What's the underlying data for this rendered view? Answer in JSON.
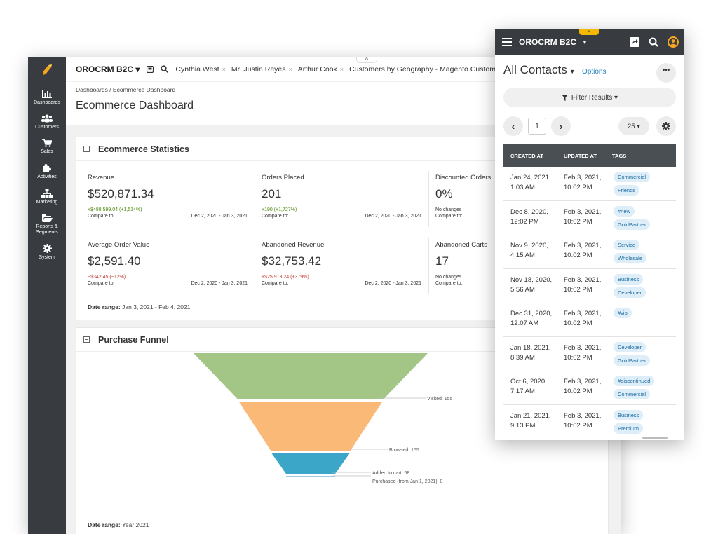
{
  "desktop": {
    "topbar": {
      "brand": "OROCRM B2C",
      "pinned": [
        {
          "label": "Cynthia West"
        },
        {
          "label": "Mr. Justin Reyes"
        },
        {
          "label": "Arthur Cook"
        },
        {
          "label": "Customers by Geography - Magento Customers"
        }
      ]
    },
    "sidebar": {
      "items": [
        {
          "label": "Dashboards",
          "icon": "bar-chart-icon"
        },
        {
          "label": "Customers",
          "icon": "users-icon"
        },
        {
          "label": "Sales",
          "icon": "cart-icon"
        },
        {
          "label": "Activities",
          "icon": "puzzle-icon"
        },
        {
          "label": "Marketing",
          "icon": "sitemap-icon"
        },
        {
          "label": "Reports & Segments",
          "icon": "folder-icon"
        },
        {
          "label": "System",
          "icon": "gear-icon"
        }
      ]
    },
    "breadcrumb": "Dashboards / Ecommerce Dashboard",
    "page_title": "Ecommerce Dashboard",
    "stats_widget": {
      "title": "Ecommerce Statistics",
      "stats": [
        {
          "label": "Revenue",
          "value": "$520,871.34",
          "change": "+$488,599.04 (+1,514%)",
          "trend": "positive",
          "compare_label": "Compare to:",
          "compare_range": "Dec 2, 2020 - Jan 3, 2021"
        },
        {
          "label": "Orders Placed",
          "value": "201",
          "change": "+190 (+1,727%)",
          "trend": "positive",
          "compare_label": "Compare to:",
          "compare_range": "Dec 2, 2020 - Jan 3, 2021"
        },
        {
          "label": "Discounted Orders",
          "value": "0%",
          "change": "No changes",
          "trend": "neutral",
          "compare_label": "Compare to:",
          "compare_range": ""
        },
        {
          "label": "Average Order Value",
          "value": "$2,591.40",
          "change": "−$342.45 (−12%)",
          "trend": "negative",
          "compare_label": "Compare to:",
          "compare_range": "Dec 2, 2020 - Jan 3, 2021"
        },
        {
          "label": "Abandoned Revenue",
          "value": "$32,753.42",
          "change": "+$25,913.24 (+379%)",
          "trend": "negative",
          "compare_label": "Compare to:",
          "compare_range": "Dec 2, 2020 - Jan 3, 2021"
        },
        {
          "label": "Abandoned Carts",
          "value": "17",
          "change": "No changes",
          "trend": "neutral",
          "compare_label": "Compare to:",
          "compare_range": ""
        }
      ],
      "date_range_label": "Date range:",
      "date_range_value": "Jan 3, 2021 - Feb 4, 2021"
    },
    "funnel_widget": {
      "title": "Purchase Funnel",
      "date_range_label": "Date range:",
      "date_range_value": "Year 2021"
    }
  },
  "chart_data": {
    "type": "funnel",
    "title": "Purchase Funnel",
    "stages": [
      {
        "label": "Visited",
        "value": 155,
        "color": "#a3c586"
      },
      {
        "label": "Browsed",
        "value": 155,
        "color": "#fbb978"
      },
      {
        "label": "Added to cart",
        "value": 68,
        "color": "#3ba6c8"
      },
      {
        "label": "Purchased (from Jan 1, 2021)",
        "value": 0,
        "color": "#9ecae1"
      }
    ]
  },
  "mobile": {
    "brand": "OROCRM B2C",
    "title": "All Contacts",
    "options_label": "Options",
    "more_label": "•••",
    "filter_label": "Filter Results",
    "page": "1",
    "page_size": "25",
    "columns": [
      "CREATED AT",
      "UPDATED AT",
      "TAGS"
    ],
    "rows": [
      {
        "created_1": "Jan 24, 2021,",
        "created_2": "1:03 AM",
        "updated_1": "Feb 3, 2021,",
        "updated_2": "10:02 PM",
        "tags": [
          "Commercial",
          "Friends"
        ]
      },
      {
        "created_1": "Dec 8, 2020,",
        "created_2": "12:02 PM",
        "updated_1": "Feb 3, 2021,",
        "updated_2": "10:02 PM",
        "tags": [
          "#new",
          "GoldPartner"
        ]
      },
      {
        "created_1": "Nov 9, 2020,",
        "created_2": "4:15 AM",
        "updated_1": "Feb 3, 2021,",
        "updated_2": "10:02 PM",
        "tags": [
          "Service",
          "Wholesale"
        ]
      },
      {
        "created_1": "Nov 18, 2020,",
        "created_2": "5:56 AM",
        "updated_1": "Feb 3, 2021,",
        "updated_2": "10:02 PM",
        "tags": [
          "Business",
          "Developer"
        ]
      },
      {
        "created_1": "Dec 31, 2020,",
        "created_2": "12:07 AM",
        "updated_1": "Feb 3, 2021,",
        "updated_2": "10:02 PM",
        "tags": [
          "#vip"
        ]
      },
      {
        "created_1": "Jan 18, 2021,",
        "created_2": "8:39 AM",
        "updated_1": "Feb 3, 2021,",
        "updated_2": "10:02 PM",
        "tags": [
          "Developer",
          "GoldPartner"
        ]
      },
      {
        "created_1": "Oct 6, 2020,",
        "created_2": "7:17 AM",
        "updated_1": "Feb 3, 2021,",
        "updated_2": "10:02 PM",
        "tags": [
          "#discontinued",
          "Commercial"
        ]
      },
      {
        "created_1": "Jan 21, 2021,",
        "created_2": "9:13 PM",
        "updated_1": "Feb 3, 2021,",
        "updated_2": "10:02 PM",
        "tags": [
          "Business",
          "Premium"
        ]
      }
    ]
  }
}
